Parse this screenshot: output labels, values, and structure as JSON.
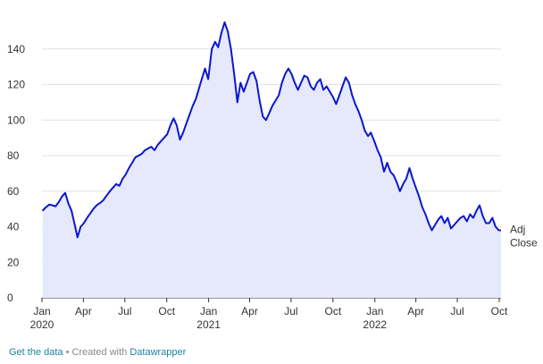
{
  "chart_data": {
    "type": "area",
    "title": "",
    "xlabel": "",
    "ylabel": "",
    "series": [
      {
        "name": "Adj Close",
        "color": "#0b18c9",
        "fill": "#e6e8fb",
        "points": [
          [
            "2020-01-02",
            49
          ],
          [
            "2020-01-10",
            51
          ],
          [
            "2020-01-17",
            52.5
          ],
          [
            "2020-01-24",
            52
          ],
          [
            "2020-01-31",
            51.5
          ],
          [
            "2020-02-07",
            54
          ],
          [
            "2020-02-14",
            57
          ],
          [
            "2020-02-21",
            59
          ],
          [
            "2020-02-28",
            53
          ],
          [
            "2020-03-06",
            49
          ],
          [
            "2020-03-13",
            41
          ],
          [
            "2020-03-19",
            34
          ],
          [
            "2020-03-26",
            40
          ],
          [
            "2020-04-02",
            42
          ],
          [
            "2020-04-09",
            45
          ],
          [
            "2020-04-16",
            47.5
          ],
          [
            "2020-04-23",
            50
          ],
          [
            "2020-04-30",
            52
          ],
          [
            "2020-05-08",
            53.5
          ],
          [
            "2020-05-15",
            55
          ],
          [
            "2020-05-22",
            57.5
          ],
          [
            "2020-05-29",
            60
          ],
          [
            "2020-06-05",
            62
          ],
          [
            "2020-06-12",
            64
          ],
          [
            "2020-06-19",
            63
          ],
          [
            "2020-06-26",
            67
          ],
          [
            "2020-07-02",
            69
          ],
          [
            "2020-07-10",
            73
          ],
          [
            "2020-07-17",
            76
          ],
          [
            "2020-07-24",
            79
          ],
          [
            "2020-07-31",
            80
          ],
          [
            "2020-08-07",
            81
          ],
          [
            "2020-08-14",
            83
          ],
          [
            "2020-08-21",
            84
          ],
          [
            "2020-08-28",
            85
          ],
          [
            "2020-09-04",
            83
          ],
          [
            "2020-09-11",
            86
          ],
          [
            "2020-09-18",
            88
          ],
          [
            "2020-09-25",
            90
          ],
          [
            "2020-10-02",
            92
          ],
          [
            "2020-10-09",
            97
          ],
          [
            "2020-10-16",
            101
          ],
          [
            "2020-10-23",
            97
          ],
          [
            "2020-10-30",
            89
          ],
          [
            "2020-11-06",
            93
          ],
          [
            "2020-11-13",
            98
          ],
          [
            "2020-11-20",
            103
          ],
          [
            "2020-11-27",
            108
          ],
          [
            "2020-12-04",
            112
          ],
          [
            "2020-12-11",
            118
          ],
          [
            "2020-12-18",
            124
          ],
          [
            "2020-12-24",
            129
          ],
          [
            "2020-12-31",
            123
          ],
          [
            "2021-01-08",
            140
          ],
          [
            "2021-01-15",
            144
          ],
          [
            "2021-01-22",
            141
          ],
          [
            "2021-01-29",
            149
          ],
          [
            "2021-02-05",
            155
          ],
          [
            "2021-02-12",
            150
          ],
          [
            "2021-02-19",
            140
          ],
          [
            "2021-02-26",
            126
          ],
          [
            "2021-03-05",
            110
          ],
          [
            "2021-03-12",
            121
          ],
          [
            "2021-03-19",
            116
          ],
          [
            "2021-03-26",
            121
          ],
          [
            "2021-04-02",
            126
          ],
          [
            "2021-04-09",
            127
          ],
          [
            "2021-04-16",
            122
          ],
          [
            "2021-04-23",
            111
          ],
          [
            "2021-04-30",
            102
          ],
          [
            "2021-05-07",
            100
          ],
          [
            "2021-05-14",
            104
          ],
          [
            "2021-05-21",
            108
          ],
          [
            "2021-05-28",
            111
          ],
          [
            "2021-06-04",
            114
          ],
          [
            "2021-06-11",
            121
          ],
          [
            "2021-06-18",
            126
          ],
          [
            "2021-06-25",
            129
          ],
          [
            "2021-07-02",
            126
          ],
          [
            "2021-07-09",
            121
          ],
          [
            "2021-07-16",
            117
          ],
          [
            "2021-07-23",
            121
          ],
          [
            "2021-07-30",
            125
          ],
          [
            "2021-08-06",
            124
          ],
          [
            "2021-08-13",
            119
          ],
          [
            "2021-08-20",
            117
          ],
          [
            "2021-08-27",
            121
          ],
          [
            "2021-09-03",
            123
          ],
          [
            "2021-09-10",
            117
          ],
          [
            "2021-09-17",
            119
          ],
          [
            "2021-09-24",
            116
          ],
          [
            "2021-10-01",
            113
          ],
          [
            "2021-10-08",
            109
          ],
          [
            "2021-10-15",
            114
          ],
          [
            "2021-10-22",
            119
          ],
          [
            "2021-10-29",
            124
          ],
          [
            "2021-11-05",
            121
          ],
          [
            "2021-11-12",
            114
          ],
          [
            "2021-11-19",
            109
          ],
          [
            "2021-11-26",
            105
          ],
          [
            "2021-12-03",
            100
          ],
          [
            "2021-12-10",
            94
          ],
          [
            "2021-12-17",
            91
          ],
          [
            "2021-12-23",
            93
          ],
          [
            "2021-12-31",
            88
          ],
          [
            "2022-01-07",
            83
          ],
          [
            "2022-01-14",
            79
          ],
          [
            "2022-01-21",
            71
          ],
          [
            "2022-01-28",
            76
          ],
          [
            "2022-02-04",
            71
          ],
          [
            "2022-02-11",
            69
          ],
          [
            "2022-02-18",
            65
          ],
          [
            "2022-02-25",
            60
          ],
          [
            "2022-03-04",
            64
          ],
          [
            "2022-03-11",
            67
          ],
          [
            "2022-03-18",
            73
          ],
          [
            "2022-03-25",
            67
          ],
          [
            "2022-04-01",
            62
          ],
          [
            "2022-04-08",
            57
          ],
          [
            "2022-04-15",
            51
          ],
          [
            "2022-04-22",
            47
          ],
          [
            "2022-04-29",
            42
          ],
          [
            "2022-05-06",
            38
          ],
          [
            "2022-05-13",
            41
          ],
          [
            "2022-05-20",
            44
          ],
          [
            "2022-05-27",
            46
          ],
          [
            "2022-06-03",
            42
          ],
          [
            "2022-06-10",
            45
          ],
          [
            "2022-06-17",
            39
          ],
          [
            "2022-06-24",
            41
          ],
          [
            "2022-07-01",
            43
          ],
          [
            "2022-07-08",
            45
          ],
          [
            "2022-07-15",
            46
          ],
          [
            "2022-07-22",
            43
          ],
          [
            "2022-07-29",
            47
          ],
          [
            "2022-08-05",
            45
          ],
          [
            "2022-08-12",
            49
          ],
          [
            "2022-08-19",
            52
          ],
          [
            "2022-08-26",
            46
          ],
          [
            "2022-09-02",
            42
          ],
          [
            "2022-09-09",
            42
          ],
          [
            "2022-09-16",
            45
          ],
          [
            "2022-09-23",
            40
          ],
          [
            "2022-09-30",
            38
          ],
          [
            "2022-10-05",
            38
          ]
        ]
      }
    ],
    "y_ticks": [
      "0",
      "20",
      "40",
      "60",
      "80",
      "100",
      "120",
      "140"
    ],
    "ylim": [
      0,
      160
    ],
    "xlim": [
      "2020-01-01",
      "2022-10-05"
    ],
    "x_ticks": [
      {
        "date": "2020-01-01",
        "label": "Jan",
        "year": "2020"
      },
      {
        "date": "2020-04-01",
        "label": "Apr",
        "year": ""
      },
      {
        "date": "2020-07-01",
        "label": "Jul",
        "year": ""
      },
      {
        "date": "2020-10-01",
        "label": "Oct",
        "year": ""
      },
      {
        "date": "2021-01-01",
        "label": "Jan",
        "year": "2021"
      },
      {
        "date": "2021-04-01",
        "label": "Apr",
        "year": ""
      },
      {
        "date": "2021-07-01",
        "label": "Jul",
        "year": ""
      },
      {
        "date": "2021-10-01",
        "label": "Oct",
        "year": ""
      },
      {
        "date": "2022-01-01",
        "label": "Jan",
        "year": "2022"
      },
      {
        "date": "2022-04-01",
        "label": "Apr",
        "year": ""
      },
      {
        "date": "2022-07-01",
        "label": "Jul",
        "year": ""
      },
      {
        "date": "2022-10-01",
        "label": "Oct",
        "year": ""
      }
    ],
    "series_label_lines": [
      "Adj",
      "Close"
    ],
    "grid": true,
    "legend": "direct label at end of line"
  },
  "footer": {
    "get_data": "Get the data",
    "separator": " • Created with ",
    "tool": "Datawrapper"
  }
}
